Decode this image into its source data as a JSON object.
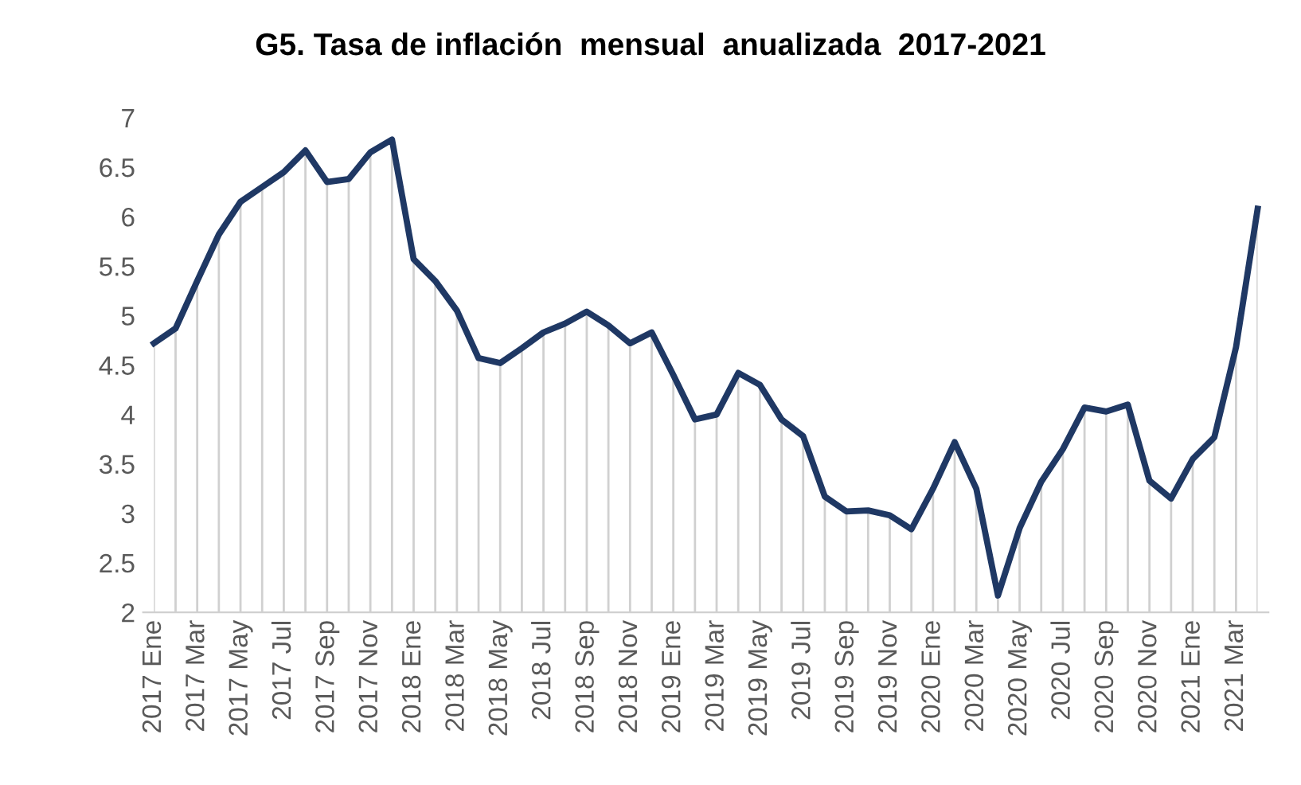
{
  "chart_data": {
    "type": "line",
    "title": "G5. Tasa de inflación  mensual  anualizada  2017-2021",
    "categories": [
      "2017 Ene",
      null,
      "2017 Mar",
      null,
      "2017 May",
      null,
      "2017 Jul",
      null,
      "2017 Sep",
      null,
      "2017 Nov",
      null,
      "2018 Ene",
      null,
      "2018 Mar",
      null,
      "2018 May",
      null,
      "2018 Jul",
      null,
      "2018 Sep",
      null,
      "2018 Nov",
      null,
      "2019 Ene",
      null,
      "2019 Mar",
      null,
      "2019 May",
      null,
      "2019 Jul",
      null,
      "2019 Sep",
      null,
      "2019 Nov",
      null,
      "2020 Ene",
      null,
      "2020 Mar",
      null,
      "2020 May",
      null,
      "2020 Jul",
      null,
      "2020 Sep",
      null,
      "2020 Nov",
      null,
      "2021 Ene",
      null,
      "2021 Mar",
      null
    ],
    "series": [
      {
        "color": "#1f3864",
        "values": [
          4.72,
          4.87,
          5.35,
          5.82,
          6.15,
          6.3,
          6.45,
          6.67,
          6.35,
          6.38,
          6.65,
          6.78,
          5.57,
          5.35,
          5.05,
          4.57,
          4.52,
          4.67,
          4.83,
          4.92,
          5.04,
          4.9,
          4.72,
          4.83,
          4.4,
          3.95,
          4.0,
          4.42,
          4.3,
          3.95,
          3.78,
          3.17,
          3.02,
          3.03,
          2.98,
          2.84,
          3.25,
          3.72,
          3.25,
          2.17,
          2.85,
          3.32,
          3.65,
          4.07,
          4.03,
          4.1,
          3.33,
          3.15,
          3.55,
          3.77,
          4.68,
          6.08
        ]
      }
    ],
    "ylim": [
      2,
      7
    ],
    "yticks": [
      2,
      2.5,
      3,
      3.5,
      4,
      4.5,
      5,
      5.5,
      6,
      6.5,
      7
    ],
    "grid": "x",
    "marker": "none",
    "line_style": "solid",
    "legend": false
  }
}
